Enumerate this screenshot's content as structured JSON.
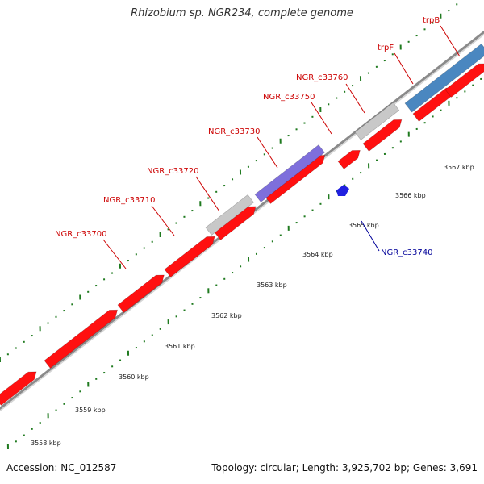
{
  "title": "Rhizobium sp. NGR234, complete genome",
  "footer": {
    "accession": "Accession: NC_012587",
    "summary": "Topology: circular; Length: 3,925,702 bp; Genes: 3,691"
  },
  "colors": {
    "gene_red": "#ff1010",
    "gene_grey": "#c8c8c8",
    "gene_purple": "#7e6fdc",
    "gene_blue": "#2020e0",
    "gene_steelblue": "#4a87c0",
    "label_red": "#cc0000",
    "label_blue": "#000099",
    "tick_green": "#1f7a1f",
    "backbone": "#8a8a8a"
  },
  "scale_ticks": [
    "3558 kbp",
    "3559 kbp",
    "3560 kbp",
    "3561 kbp",
    "3562 kbp",
    "3563 kbp",
    "3564 kbp",
    "3565 kbp",
    "3566 kbp",
    "3567 kbp"
  ],
  "gene_labels": [
    {
      "name": "NGR_c33700",
      "color": "#cc0000"
    },
    {
      "name": "NGR_c33710",
      "color": "#cc0000"
    },
    {
      "name": "NGR_c33720",
      "color": "#cc0000"
    },
    {
      "name": "NGR_c33730",
      "color": "#cc0000"
    },
    {
      "name": "NGR_c33750",
      "color": "#cc0000"
    },
    {
      "name": "NGR_c33760",
      "color": "#cc0000"
    },
    {
      "name": "trpF",
      "color": "#cc0000"
    },
    {
      "name": "trpB",
      "color": "#cc0000"
    },
    {
      "name": "NGR_c33740",
      "color": "#000099"
    }
  ]
}
